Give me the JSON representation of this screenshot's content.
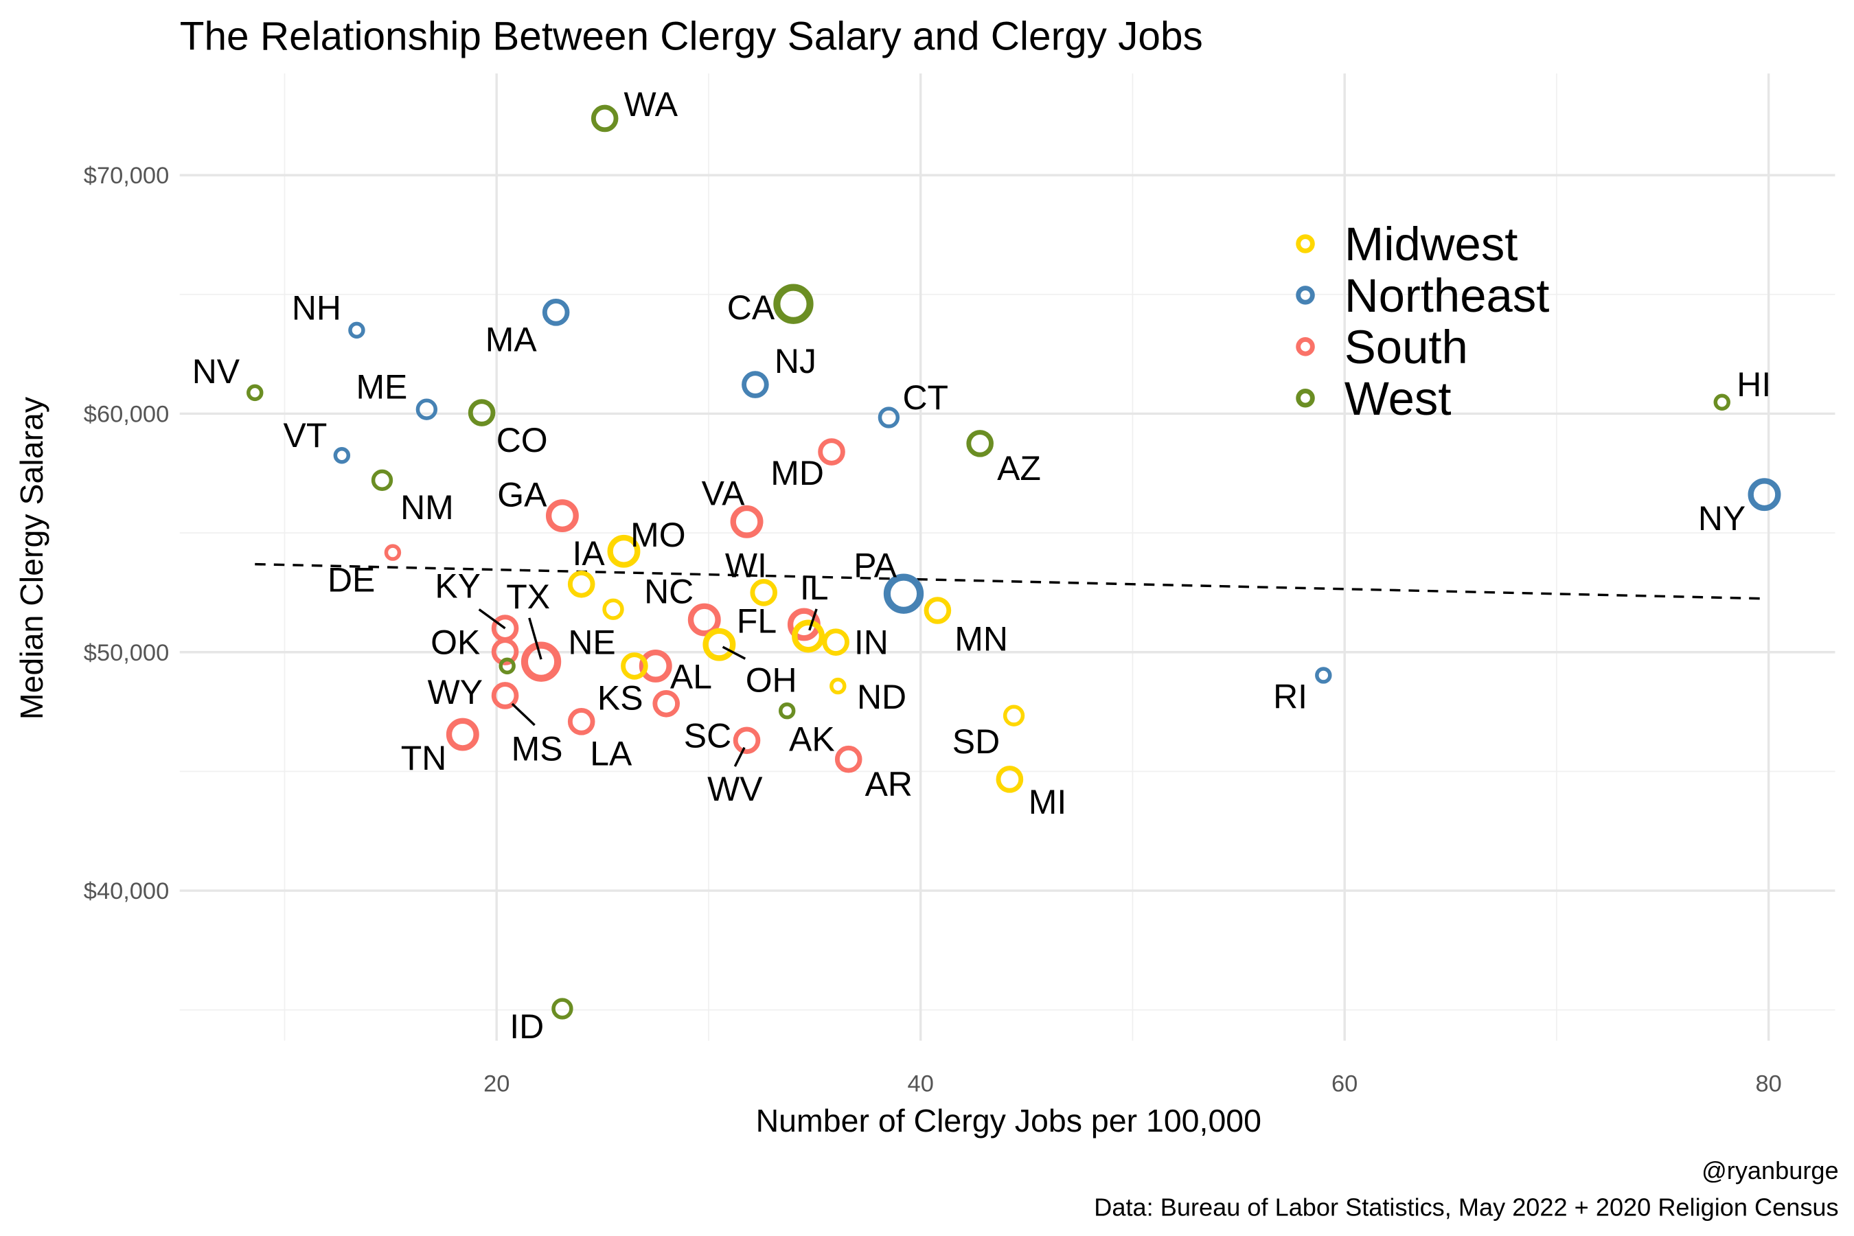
{
  "chart_data": {
    "type": "scatter",
    "title": "The Relationship Between Clergy Salary and Clergy Jobs",
    "xlabel": "Number of Clergy Jobs per 100,000",
    "ylabel": "Median Clergy Salaray",
    "xlim": [
      5,
      83
    ],
    "ylim": [
      33700,
      74300
    ],
    "x_ticks": [
      20,
      40,
      60,
      80
    ],
    "x_tick_labels": [
      "20",
      "40",
      "60",
      "80"
    ],
    "y_ticks": [
      40000,
      50000,
      60000,
      70000
    ],
    "y_tick_labels": [
      "$40,000",
      "$50,000",
      "$60,000",
      "$70,000"
    ],
    "grid": true,
    "legend_position": "top-right",
    "legend": [
      {
        "name": "Midwest",
        "color": "#FFD700"
      },
      {
        "name": "Northeast",
        "color": "#4682B4"
      },
      {
        "name": "South",
        "color": "#FA7268"
      },
      {
        "name": "West",
        "color": "#6B8E23"
      }
    ],
    "trend_line": {
      "style": "dashed",
      "x": [
        8.6,
        79.6
      ],
      "y": [
        53690,
        52250
      ]
    },
    "points": [
      {
        "state": "WA",
        "region": "West",
        "x": 25.1,
        "y": 72380,
        "size": 3
      },
      {
        "state": "CA",
        "region": "West",
        "x": 34.0,
        "y": 64600,
        "size": 5
      },
      {
        "state": "NH",
        "region": "Northeast",
        "x": 13.4,
        "y": 63500,
        "size": 1
      },
      {
        "state": "MA",
        "region": "Northeast",
        "x": 22.8,
        "y": 64250,
        "size": 3
      },
      {
        "state": "NV",
        "region": "West",
        "x": 8.6,
        "y": 60880,
        "size": 1
      },
      {
        "state": "ME",
        "region": "Northeast",
        "x": 16.7,
        "y": 60180,
        "size": 2
      },
      {
        "state": "CO",
        "region": "West",
        "x": 19.3,
        "y": 60040,
        "size": 3
      },
      {
        "state": "VT",
        "region": "Northeast",
        "x": 12.7,
        "y": 58250,
        "size": 1
      },
      {
        "state": "NM",
        "region": "West",
        "x": 14.6,
        "y": 57210,
        "size": 2
      },
      {
        "state": "NJ",
        "region": "Northeast",
        "x": 32.2,
        "y": 61220,
        "size": 3
      },
      {
        "state": "CT",
        "region": "Northeast",
        "x": 38.5,
        "y": 59840,
        "size": 2
      },
      {
        "state": "MD",
        "region": "South",
        "x": 35.8,
        "y": 58400,
        "size": 3
      },
      {
        "state": "AZ",
        "region": "West",
        "x": 42.8,
        "y": 58750,
        "size": 3
      },
      {
        "state": "HI",
        "region": "West",
        "x": 77.8,
        "y": 60480,
        "size": 1
      },
      {
        "state": "NY",
        "region": "Northeast",
        "x": 79.8,
        "y": 56610,
        "size": 4
      },
      {
        "state": "GA",
        "region": "South",
        "x": 23.1,
        "y": 55720,
        "size": 4
      },
      {
        "state": "VA",
        "region": "South",
        "x": 31.8,
        "y": 55470,
        "size": 4
      },
      {
        "state": "DE",
        "region": "South",
        "x": 15.1,
        "y": 54180,
        "size": 1
      },
      {
        "state": "MO",
        "region": "Midwest",
        "x": 26.0,
        "y": 54230,
        "size": 4
      },
      {
        "state": "IA",
        "region": "Midwest",
        "x": 24.0,
        "y": 52850,
        "size": 3
      },
      {
        "state": "WI",
        "region": "Midwest",
        "x": 32.6,
        "y": 52500,
        "size": 3
      },
      {
        "state": "PA",
        "region": "Northeast",
        "x": 39.2,
        "y": 52450,
        "size": 5
      },
      {
        "state": "NE",
        "region": "Midwest",
        "x": 25.5,
        "y": 51800,
        "size": 2
      },
      {
        "state": "NC",
        "region": "South",
        "x": 29.8,
        "y": 51360,
        "size": 4
      },
      {
        "state": "MN",
        "region": "Midwest",
        "x": 40.8,
        "y": 51750,
        "size": 3
      },
      {
        "state": "TX",
        "region": "South",
        "x": 22.1,
        "y": 49600,
        "size": 5
      },
      {
        "state": "KY",
        "region": "South",
        "x": 20.4,
        "y": 51000,
        "size": 3
      },
      {
        "state": "OK",
        "region": "South",
        "x": 20.4,
        "y": 50020,
        "size": 3
      },
      {
        "state": "WY",
        "region": "West",
        "x": 20.5,
        "y": 49420,
        "size": 1
      },
      {
        "state": "MS",
        "region": "South",
        "x": 20.4,
        "y": 48180,
        "size": 3
      },
      {
        "state": "OH",
        "region": "Midwest",
        "x": 30.5,
        "y": 50320,
        "size": 4
      },
      {
        "state": "FL",
        "region": "South",
        "x": 34.5,
        "y": 51160,
        "size": 4
      },
      {
        "state": "IL",
        "region": "Midwest",
        "x": 34.7,
        "y": 50670,
        "size": 4
      },
      {
        "state": "IN",
        "region": "Midwest",
        "x": 36.0,
        "y": 50420,
        "size": 3
      },
      {
        "state": "AL",
        "region": "South",
        "x": 27.5,
        "y": 49420,
        "size": 4
      },
      {
        "state": "KS",
        "region": "Midwest",
        "x": 26.5,
        "y": 49420,
        "size": 3
      },
      {
        "state": "LA",
        "region": "South",
        "x": 24.0,
        "y": 47090,
        "size": 3
      },
      {
        "state": "SC",
        "region": "South",
        "x": 28.0,
        "y": 47840,
        "size": 3
      },
      {
        "state": "WV",
        "region": "South",
        "x": 31.8,
        "y": 46300,
        "size": 3
      },
      {
        "state": "AK",
        "region": "West",
        "x": 33.7,
        "y": 47540,
        "size": 1
      },
      {
        "state": "ND",
        "region": "Midwest",
        "x": 36.1,
        "y": 48580,
        "size": 1
      },
      {
        "state": "AR",
        "region": "South",
        "x": 36.6,
        "y": 45510,
        "size": 3
      },
      {
        "state": "SD",
        "region": "Midwest",
        "x": 44.4,
        "y": 47340,
        "size": 2
      },
      {
        "state": "MI",
        "region": "Midwest",
        "x": 44.2,
        "y": 44670,
        "size": 3
      },
      {
        "state": "TN",
        "region": "South",
        "x": 18.4,
        "y": 46550,
        "size": 4
      },
      {
        "state": "RI",
        "region": "Northeast",
        "x": 59.0,
        "y": 49030,
        "size": 1
      },
      {
        "state": "ID",
        "region": "West",
        "x": 23.1,
        "y": 35050,
        "size": 2
      }
    ],
    "caption": [
      "@ryanburge",
      "Data: Bureau of Labor Statistics, May 2022 + 2020 Religion Census"
    ]
  }
}
